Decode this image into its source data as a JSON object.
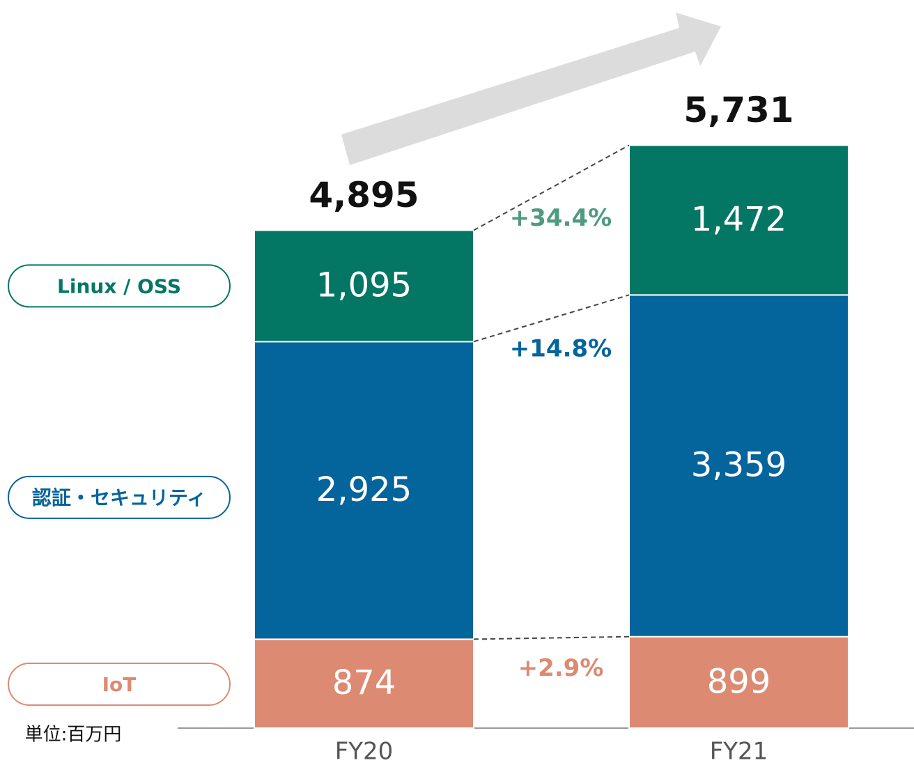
{
  "chart_data": {
    "type": "stacked_bar",
    "categories": [
      "FY20",
      "FY21"
    ],
    "series": [
      {
        "name": "IoT",
        "color": "#dd8a72",
        "values": [
          874,
          899
        ],
        "value_labels": [
          "874",
          "899"
        ],
        "change": "+2.9%"
      },
      {
        "name": "認証・セキュリティ",
        "color": "#04649c",
        "values": [
          2925,
          3359
        ],
        "value_labels": [
          "2,925",
          "3,359"
        ],
        "change": "+14.8%"
      },
      {
        "name": "Linux / OSS",
        "color": "#047764",
        "values": [
          1095,
          1472
        ],
        "value_labels": [
          "1,095",
          "1,472"
        ],
        "change": "+34.4%",
        "change_color": "#4f9a82"
      }
    ],
    "totals": [
      4895,
      5731
    ],
    "total_labels": [
      "4,895",
      "5,731"
    ],
    "unit_label": "単位:百万円"
  }
}
